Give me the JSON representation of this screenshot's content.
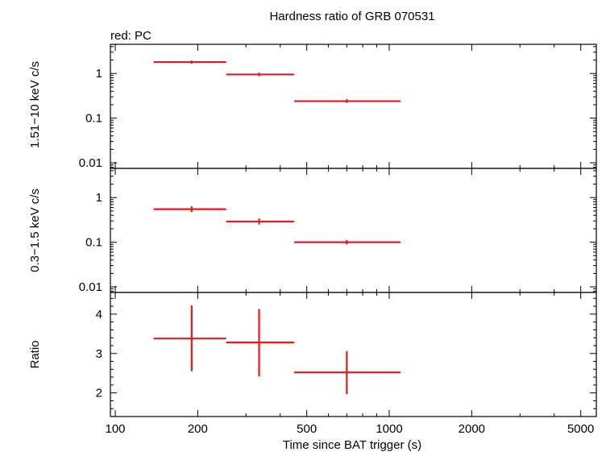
{
  "chart_data": {
    "type": "scatter",
    "title": "Hardness ratio of GRB 070531",
    "subtitle": "red: PC",
    "xlabel": "Time since BAT trigger (s)",
    "xscale": "log",
    "xlim": [
      96,
      5700
    ],
    "x_ticks": [
      100,
      200,
      500,
      1000,
      2000,
      5000
    ],
    "x_tick_labels": [
      "100",
      "200",
      "500",
      "1000",
      "2000",
      "5000"
    ],
    "series_color": "#e41a1c",
    "panels": [
      {
        "id": "hard",
        "ylabel": "1.51−10 keV c/s",
        "yscale": "log",
        "ylim": [
          0.0075,
          4.5
        ],
        "y_ticks": [
          0.01,
          0.1,
          1
        ],
        "y_tick_labels": [
          "0.01",
          "0.1",
          "1"
        ],
        "points": [
          {
            "x": 190,
            "xlo": 138,
            "xhi": 254,
            "y": 1.8,
            "ylo": 1.65,
            "yhi": 1.95
          },
          {
            "x": 335,
            "xlo": 254,
            "xhi": 450,
            "y": 0.95,
            "ylo": 0.87,
            "yhi": 1.04
          },
          {
            "x": 700,
            "xlo": 450,
            "xhi": 1100,
            "y": 0.24,
            "ylo": 0.22,
            "yhi": 0.265
          }
        ]
      },
      {
        "id": "soft",
        "ylabel": "0.3−1.5 keV c/s",
        "yscale": "log",
        "ylim": [
          0.0075,
          4.5
        ],
        "y_ticks": [
          0.01,
          0.1,
          1
        ],
        "y_tick_labels": [
          "0.01",
          "0.1",
          "1"
        ],
        "points": [
          {
            "x": 190,
            "xlo": 138,
            "xhi": 254,
            "y": 0.55,
            "ylo": 0.47,
            "yhi": 0.64
          },
          {
            "x": 335,
            "xlo": 254,
            "xhi": 450,
            "y": 0.29,
            "ylo": 0.25,
            "yhi": 0.34
          },
          {
            "x": 700,
            "xlo": 450,
            "xhi": 1100,
            "y": 0.1,
            "ylo": 0.089,
            "yhi": 0.112
          }
        ]
      },
      {
        "id": "ratio",
        "ylabel": "Ratio",
        "yscale": "linear",
        "ylim": [
          1.4,
          4.55
        ],
        "y_ticks": [
          2,
          3,
          4
        ],
        "y_tick_labels": [
          "2",
          "3",
          "4"
        ],
        "points": [
          {
            "x": 190,
            "xlo": 138,
            "xhi": 254,
            "y": 3.38,
            "ylo": 2.55,
            "yhi": 4.22
          },
          {
            "x": 335,
            "xlo": 254,
            "xhi": 450,
            "y": 3.28,
            "ylo": 2.42,
            "yhi": 4.13
          },
          {
            "x": 700,
            "xlo": 450,
            "xhi": 1100,
            "y": 2.52,
            "ylo": 1.97,
            "yhi": 3.06
          }
        ]
      }
    ]
  }
}
